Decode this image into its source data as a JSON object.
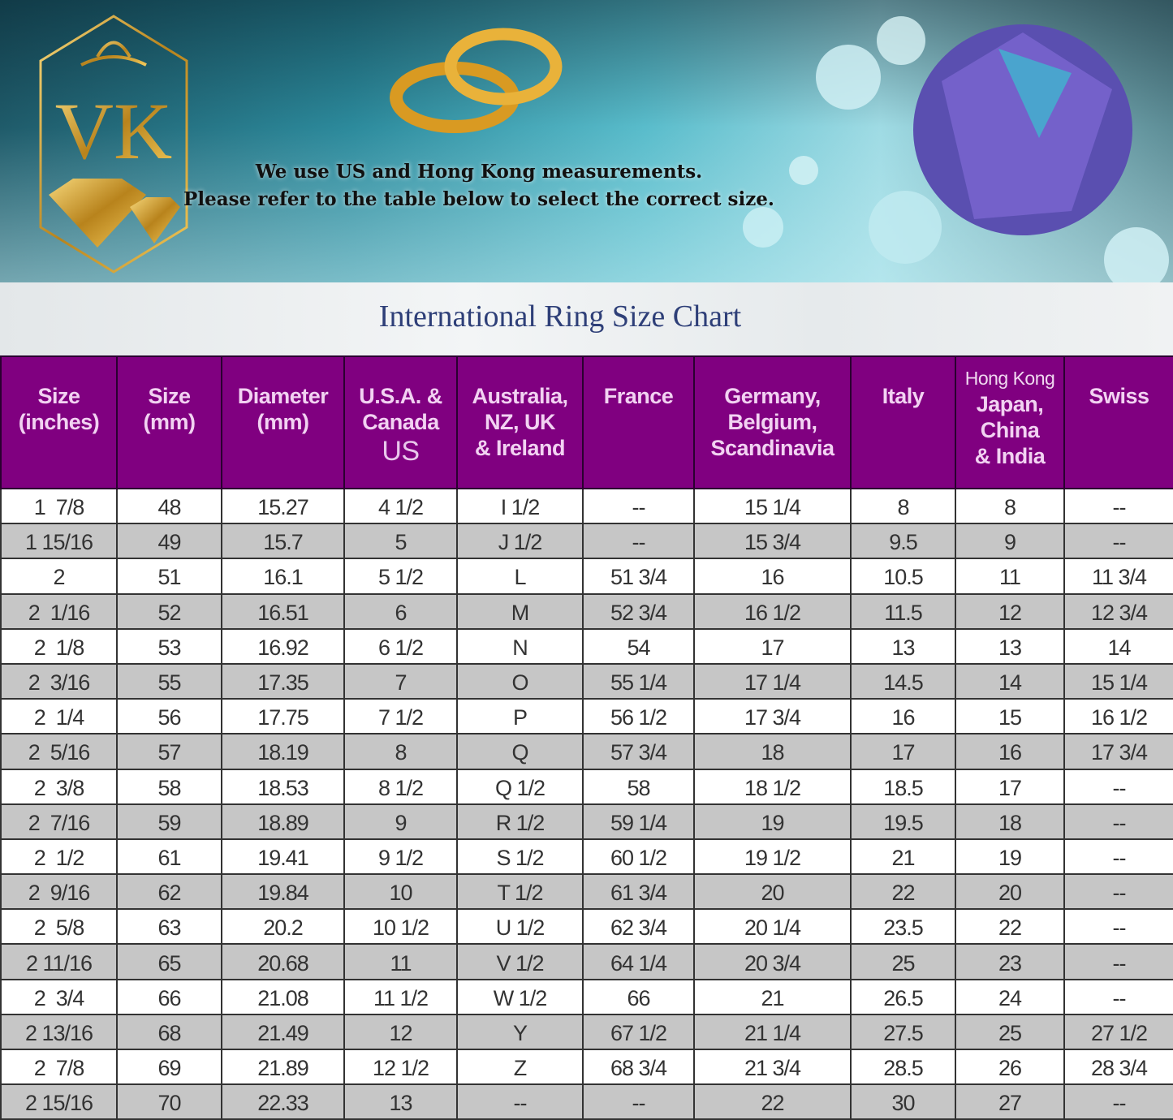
{
  "banner": {
    "logo_text": "VK",
    "message_line1": "We use US and Hong Kong measurements.",
    "message_line2": "Please refer to the table below to select the correct size."
  },
  "title": "International Ring Size Chart",
  "colors": {
    "header": "#800080",
    "title": "#2e3f78",
    "alt_row": "#c6c6c6"
  },
  "table": {
    "headers": [
      {
        "lines": [
          "Size",
          "(inches)"
        ]
      },
      {
        "lines": [
          "Size",
          "(mm)"
        ]
      },
      {
        "lines": [
          "Diameter",
          "(mm)"
        ]
      },
      {
        "lines": [
          "U.S.A. &",
          "Canada"
        ],
        "note": "US"
      },
      {
        "lines": [
          "Australia,",
          "NZ, UK",
          "& Ireland"
        ]
      },
      {
        "lines": [
          "France"
        ]
      },
      {
        "lines": [
          "Germany,",
          "Belgium,",
          "Scandinavia"
        ]
      },
      {
        "lines": [
          "Italy"
        ]
      },
      {
        "lines": [
          "Japan,",
          "China",
          "& India"
        ],
        "note_top": "Hong Kong"
      },
      {
        "lines": [
          "Swiss"
        ]
      }
    ],
    "rows": [
      [
        "1  7/8",
        "48",
        "15.27",
        "4 1/2",
        "I 1/2",
        "--",
        "15 1/4",
        "8",
        "8",
        "--"
      ],
      [
        "1 15/16",
        "49",
        "15.7",
        "5",
        "J 1/2",
        "--",
        "15 3/4",
        "9.5",
        "9",
        "--"
      ],
      [
        "2",
        "51",
        "16.1",
        "5 1/2",
        "L",
        "51 3/4",
        "16",
        "10.5",
        "11",
        "11 3/4"
      ],
      [
        "2  1/16",
        "52",
        "16.51",
        "6",
        "M",
        "52 3/4",
        "16 1/2",
        "11.5",
        "12",
        "12 3/4"
      ],
      [
        "2  1/8",
        "53",
        "16.92",
        "6 1/2",
        "N",
        "54",
        "17",
        "13",
        "13",
        "14"
      ],
      [
        "2  3/16",
        "55",
        "17.35",
        "7",
        "O",
        "55 1/4",
        "17 1/4",
        "14.5",
        "14",
        "15 1/4"
      ],
      [
        "2  1/4",
        "56",
        "17.75",
        "7 1/2",
        "P",
        "56 1/2",
        "17 3/4",
        "16",
        "15",
        "16 1/2"
      ],
      [
        "2  5/16",
        "57",
        "18.19",
        "8",
        "Q",
        "57 3/4",
        "18",
        "17",
        "16",
        "17 3/4"
      ],
      [
        "2  3/8",
        "58",
        "18.53",
        "8 1/2",
        "Q 1/2",
        "58",
        "18 1/2",
        "18.5",
        "17",
        "--"
      ],
      [
        "2  7/16",
        "59",
        "18.89",
        "9",
        "R 1/2",
        "59 1/4",
        "19",
        "19.5",
        "18",
        "--"
      ],
      [
        "2  1/2",
        "61",
        "19.41",
        "9 1/2",
        "S 1/2",
        "60 1/2",
        "19 1/2",
        "21",
        "19",
        "--"
      ],
      [
        "2  9/16",
        "62",
        "19.84",
        "10",
        "T 1/2",
        "61 3/4",
        "20",
        "22",
        "20",
        "--"
      ],
      [
        "2  5/8",
        "63",
        "20.2",
        "10 1/2",
        "U 1/2",
        "62 3/4",
        "20 1/4",
        "23.5",
        "22",
        "--"
      ],
      [
        "2 11/16",
        "65",
        "20.68",
        "11",
        "V 1/2",
        "64 1/4",
        "20 3/4",
        "25",
        "23",
        "--"
      ],
      [
        "2  3/4",
        "66",
        "21.08",
        "11 1/2",
        "W 1/2",
        "66",
        "21",
        "26.5",
        "24",
        "--"
      ],
      [
        "2 13/16",
        "68",
        "21.49",
        "12",
        "Y",
        "67 1/2",
        "21 1/4",
        "27.5",
        "25",
        "27 1/2"
      ],
      [
        "2  7/8",
        "69",
        "21.89",
        "12 1/2",
        "Z",
        "68 3/4",
        "21 3/4",
        "28.5",
        "26",
        "28 3/4"
      ],
      [
        "2 15/16",
        "70",
        "22.33",
        "13",
        "--",
        "--",
        "22",
        "30",
        "27",
        "--"
      ]
    ]
  }
}
